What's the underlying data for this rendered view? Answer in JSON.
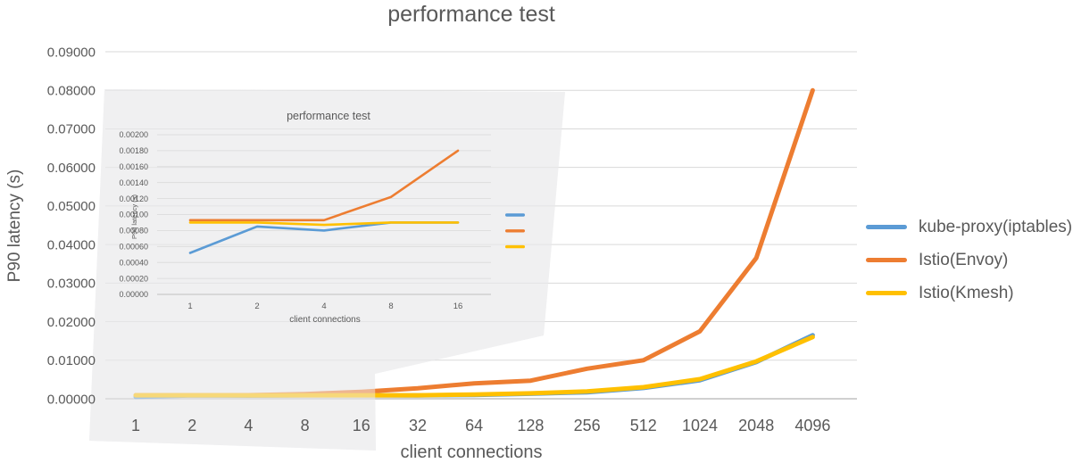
{
  "page": {
    "background": "#ffffff"
  },
  "colors": {
    "kube_proxy": "#5B9BD5",
    "envoy": "#ED7D31",
    "kmesh": "#FFC000",
    "title_text": "#595959",
    "axis_text": "#595959",
    "gridline": "#D9D9D9",
    "axis_line": "#C0C0C0",
    "inset_background": "#F0F0F1"
  },
  "chart_data": [
    {
      "type": "line",
      "title": "performance test",
      "xlabel": "client connections",
      "ylabel": "P90 latency (s)",
      "categories": [
        "1",
        "2",
        "4",
        "8",
        "16",
        "32",
        "64",
        "128",
        "256",
        "512",
        "1024",
        "2048",
        "4096"
      ],
      "ylim": [
        0,
        0.09
      ],
      "ytick_step": 0.01,
      "ytick_decimals": 5,
      "grid": true,
      "legend_position": "right",
      "series": [
        {
          "name": "kube-proxy(iptables)",
          "color_key": "kube_proxy",
          "values": [
            0.00052,
            0.00085,
            0.0008,
            0.0009,
            0.0009,
            0.00085,
            0.001,
            0.0013,
            0.0017,
            0.0028,
            0.0048,
            0.0095,
            0.0165
          ]
        },
        {
          "name": "Istio(Envoy)",
          "color_key": "envoy",
          "values": [
            0.00093,
            0.00093,
            0.00093,
            0.00122,
            0.0018,
            0.0027,
            0.004,
            0.0047,
            0.0078,
            0.01,
            0.0175,
            0.0365,
            0.08
          ]
        },
        {
          "name": "Istio(Kmesh)",
          "color_key": "kmesh",
          "values": [
            0.0009,
            0.0009,
            0.00087,
            0.0009,
            0.0009,
            0.0009,
            0.0011,
            0.0014,
            0.0019,
            0.003,
            0.0051,
            0.0097,
            0.016
          ]
        }
      ]
    },
    {
      "type": "line",
      "title": "performance test",
      "xlabel": "client connections",
      "ylabel": "P90 latency (s)",
      "categories": [
        "1",
        "2",
        "4",
        "8",
        "16"
      ],
      "ylim": [
        0,
        0.002
      ],
      "ytick_step": 0.0002,
      "ytick_decimals": 5,
      "grid": true,
      "series": [
        {
          "name": "kube-proxy(iptables)",
          "color_key": "kube_proxy",
          "values": [
            0.00052,
            0.00085,
            0.0008,
            0.0009,
            0.0009
          ]
        },
        {
          "name": "Istio(Envoy)",
          "color_key": "envoy",
          "values": [
            0.00093,
            0.00093,
            0.00093,
            0.00122,
            0.0018
          ]
        },
        {
          "name": "Istio(Kmesh)",
          "color_key": "kmesh",
          "values": [
            0.0009,
            0.0009,
            0.00087,
            0.0009,
            0.0009
          ]
        }
      ]
    }
  ]
}
